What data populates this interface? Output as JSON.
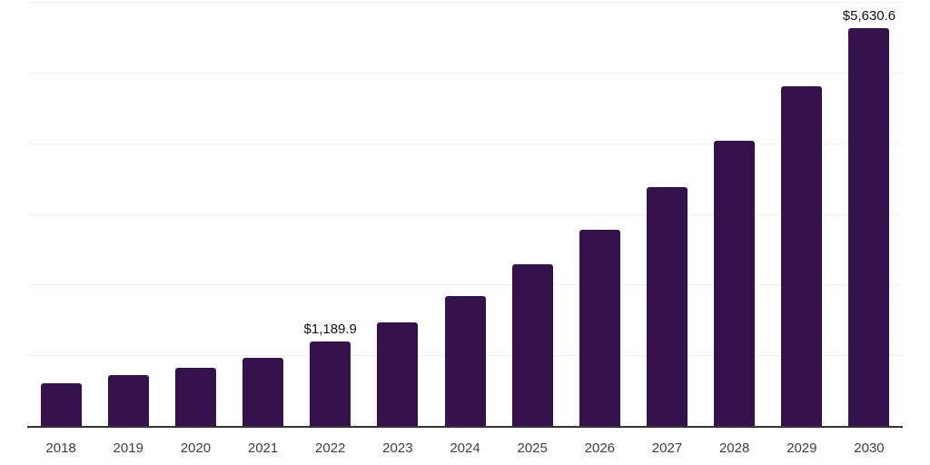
{
  "chart_data": {
    "type": "bar",
    "categories": [
      "2018",
      "2019",
      "2020",
      "2021",
      "2022",
      "2023",
      "2024",
      "2025",
      "2026",
      "2027",
      "2028",
      "2029",
      "2030"
    ],
    "values": [
      600,
      720,
      820,
      960,
      1189.9,
      1460,
      1840,
      2290,
      2780,
      3380,
      4030,
      4800,
      5630.6
    ],
    "data_labels": {
      "2022": "$1,189.9",
      "2030": "$5,630.6"
    },
    "title": "",
    "xlabel": "",
    "ylabel": "",
    "ylim": [
      0,
      6000
    ],
    "gridlines": [
      1000,
      2000,
      3000,
      4000,
      5000,
      6000
    ],
    "grid": "horizontal only",
    "legend": "none",
    "bar_color": "#35124B",
    "axis_line_color": "#333333",
    "gridline_color": "#f0f0f0",
    "tick_label_color": "#404040",
    "data_label_color": "#111111",
    "background_color": "#ffffff"
  }
}
